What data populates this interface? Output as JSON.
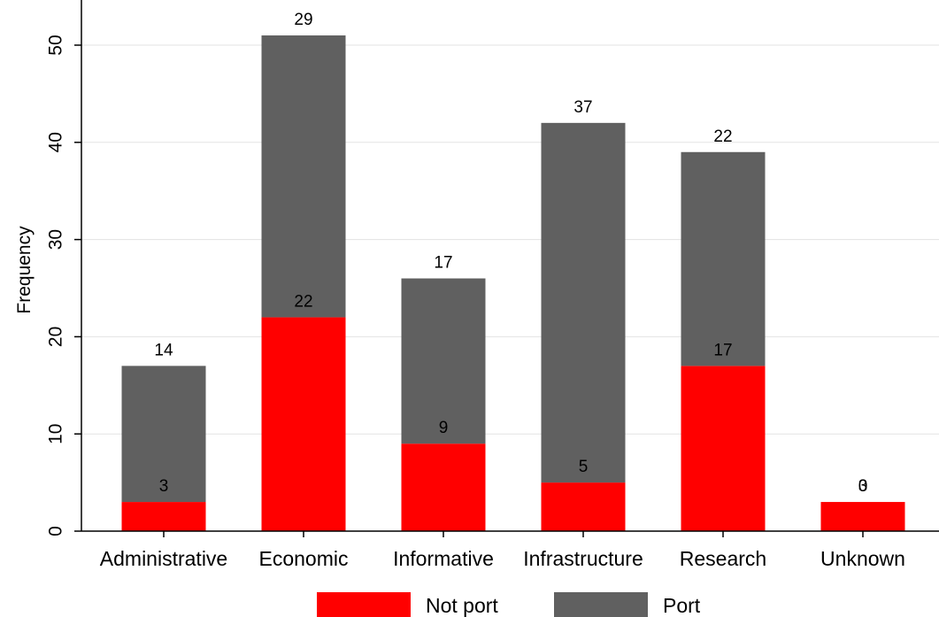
{
  "chart_data": {
    "type": "bar",
    "stacked": true,
    "categories": [
      "Administrative",
      "Economic",
      "Informative",
      "Infrastructure",
      "Research",
      "Unknown"
    ],
    "series": [
      {
        "name": "Not port",
        "values": [
          3,
          22,
          9,
          5,
          17,
          3
        ],
        "color": "#ff0000"
      },
      {
        "name": "Port",
        "values": [
          14,
          29,
          17,
          37,
          22,
          0
        ],
        "color": "#606060"
      }
    ],
    "data_labels": {
      "Not port": [
        "3",
        "22",
        "9",
        "5",
        "17",
        "3"
      ],
      "Port": [
        "14",
        "29",
        "17",
        "37",
        "22",
        "0"
      ]
    },
    "title": "",
    "xlabel": "",
    "ylabel": "Frequency",
    "ylim": [
      0,
      53
    ],
    "yticks": [
      0,
      10,
      20,
      30,
      40,
      50
    ],
    "grid": true,
    "legend": {
      "placement": "bottom",
      "entries": [
        "Not port",
        "Port"
      ]
    }
  }
}
